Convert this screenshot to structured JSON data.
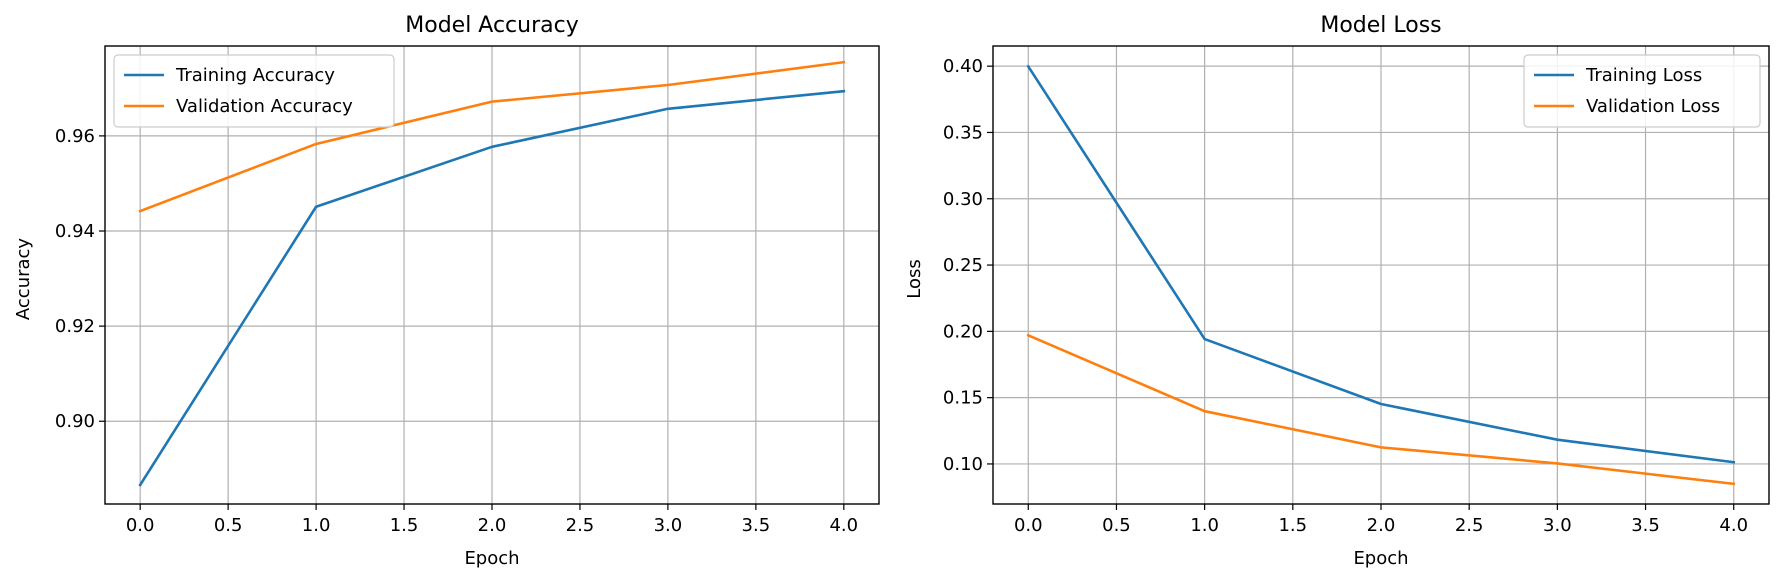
{
  "colors": {
    "training": "#1f77b4",
    "validation": "#ff7f0e",
    "grid": "#b0b0b0",
    "axes": "#000000"
  },
  "chart_data": [
    {
      "type": "line",
      "title": "Model Accuracy",
      "xlabel": "Epoch",
      "ylabel": "Accuracy",
      "xlim": [
        -0.2,
        4.2
      ],
      "ylim": [
        0.8826,
        0.9789
      ],
      "xticks": [
        0.0,
        0.5,
        1.0,
        1.5,
        2.0,
        2.5,
        3.0,
        3.5,
        4.0
      ],
      "xtick_labels": [
        "0.0",
        "0.5",
        "1.0",
        "1.5",
        "2.0",
        "2.5",
        "3.0",
        "3.5",
        "4.0"
      ],
      "yticks": [
        0.9,
        0.92,
        0.94,
        0.96
      ],
      "ytick_labels": [
        "0.90",
        "0.92",
        "0.94",
        "0.96"
      ],
      "grid": true,
      "legend_position": "upper left",
      "x": [
        0,
        1,
        2,
        3,
        4
      ],
      "series": [
        {
          "name": "Training Accuracy",
          "color": "#1f77b4",
          "values": [
            0.8866,
            0.9451,
            0.9577,
            0.9657,
            0.9694
          ]
        },
        {
          "name": "Validation Accuracy",
          "color": "#ff7f0e",
          "values": [
            0.9442,
            0.9583,
            0.9672,
            0.9707,
            0.9755
          ]
        }
      ]
    },
    {
      "type": "line",
      "title": "Model Loss",
      "xlabel": "Epoch",
      "ylabel": "Loss",
      "xlim": [
        -0.2,
        4.2
      ],
      "ylim": [
        0.0698,
        0.4152
      ],
      "xticks": [
        0.0,
        0.5,
        1.0,
        1.5,
        2.0,
        2.5,
        3.0,
        3.5,
        4.0
      ],
      "xtick_labels": [
        "0.0",
        "0.5",
        "1.0",
        "1.5",
        "2.0",
        "2.5",
        "3.0",
        "3.5",
        "4.0"
      ],
      "yticks": [
        0.1,
        0.15,
        0.2,
        0.25,
        0.3,
        0.35,
        0.4
      ],
      "ytick_labels": [
        "0.10",
        "0.15",
        "0.20",
        "0.25",
        "0.30",
        "0.35",
        "0.40"
      ],
      "grid": true,
      "legend_position": "upper right",
      "x": [
        0,
        1,
        2,
        3,
        4
      ],
      "series": [
        {
          "name": "Training Loss",
          "color": "#1f77b4",
          "values": [
            0.3998,
            0.1942,
            0.1452,
            0.1183,
            0.1013
          ]
        },
        {
          "name": "Validation Loss",
          "color": "#ff7f0e",
          "values": [
            0.197,
            0.1398,
            0.1125,
            0.1004,
            0.085
          ]
        }
      ]
    }
  ]
}
